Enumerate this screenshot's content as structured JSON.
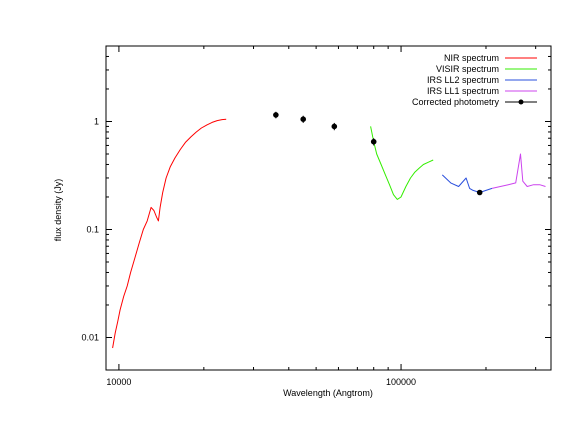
{
  "chart_data": {
    "type": "line",
    "xlabel": "Wavelength (Angtrom)",
    "ylabel": "flux density (Jy)",
    "x_scale": "log",
    "y_scale": "log",
    "xlim": [
      9000,
      340000
    ],
    "ylim": [
      0.005,
      5
    ],
    "x_ticks": [
      10000,
      100000
    ],
    "x_tick_labels": [
      "10000",
      "100000"
    ],
    "y_ticks": [
      0.01,
      0.1,
      1
    ],
    "y_tick_labels": [
      "0.01",
      "0.1",
      "1"
    ],
    "grid": false,
    "legend_position": "top-right",
    "series": [
      {
        "name": "NIR spectrum",
        "color": "#ff0000",
        "style": "line",
        "x": [
          9500,
          9700,
          9900,
          10100,
          10400,
          10700,
          11000,
          11400,
          11800,
          12200,
          12600,
          13000,
          13300,
          13600,
          13800,
          14000,
          14300,
          14700,
          15200,
          15800,
          16500,
          17200,
          18000,
          18800,
          19600,
          20500,
          21400,
          22300,
          23200,
          24000
        ],
        "y": [
          0.008,
          0.011,
          0.014,
          0.018,
          0.024,
          0.03,
          0.04,
          0.055,
          0.075,
          0.1,
          0.12,
          0.16,
          0.15,
          0.13,
          0.12,
          0.16,
          0.22,
          0.3,
          0.38,
          0.46,
          0.55,
          0.64,
          0.72,
          0.8,
          0.87,
          0.93,
          0.98,
          1.02,
          1.04,
          1.05
        ]
      },
      {
        "name": "VISIR spectrum",
        "color": "#33ee00",
        "style": "line",
        "x": [
          78000,
          80000,
          82000,
          85000,
          88000,
          91000,
          94000,
          97000,
          100000,
          104000,
          108000,
          112000,
          116000,
          120000,
          125000,
          130000
        ],
        "y": [
          0.9,
          0.65,
          0.5,
          0.4,
          0.32,
          0.26,
          0.21,
          0.19,
          0.2,
          0.25,
          0.3,
          0.34,
          0.37,
          0.4,
          0.42,
          0.44
        ]
      },
      {
        "name": "IRS LL2 spectrum",
        "color": "#2a4fdd",
        "style": "line",
        "x": [
          140000,
          150000,
          160000,
          170000,
          175000,
          180000,
          190000,
          200000,
          210000
        ],
        "y": [
          0.32,
          0.27,
          0.25,
          0.3,
          0.24,
          0.23,
          0.22,
          0.23,
          0.24
        ]
      },
      {
        "name": "IRS LL1 spectrum",
        "color": "#cc44ee",
        "style": "line",
        "x": [
          210000,
          225000,
          240000,
          255000,
          265000,
          270000,
          280000,
          295000,
          310000,
          325000
        ],
        "y": [
          0.24,
          0.25,
          0.26,
          0.27,
          0.5,
          0.28,
          0.25,
          0.26,
          0.26,
          0.25
        ]
      },
      {
        "name": "Corrected photometry",
        "color": "#000000",
        "style": "points",
        "x": [
          36000,
          45000,
          58000,
          80000,
          190000
        ],
        "y": [
          1.15,
          1.05,
          0.9,
          0.65,
          0.22
        ],
        "yerr": [
          0.08,
          0.08,
          0.07,
          0.05,
          0.01
        ]
      }
    ]
  }
}
